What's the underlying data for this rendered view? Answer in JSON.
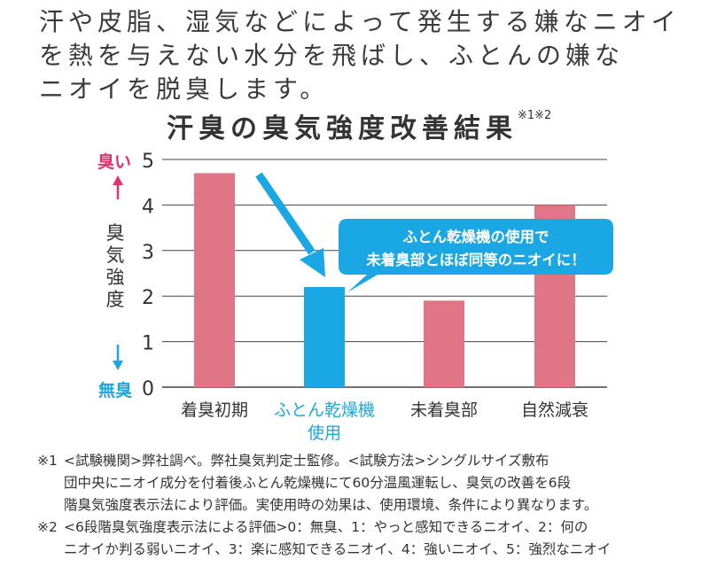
{
  "intro": {
    "lines": [
      "汗や皮脂、湿気などによって発生する嫌なニオイ",
      "を熱を与えない水分を飛ばし、ふとんの嫌な",
      "ニオイを脱臭します。"
    ]
  },
  "chart_data": {
    "type": "bar",
    "title": "汗臭の臭気強度改善結果",
    "title_note": "※1※2",
    "ylabel": "臭気強度",
    "ylim": [
      0,
      5
    ],
    "yticks": [
      "0",
      "1",
      "2",
      "3",
      "4",
      "5"
    ],
    "y_top_label": "臭い",
    "y_bottom_label": "無臭",
    "grid": true,
    "categories": [
      {
        "lines": [
          "着臭初期"
        ]
      },
      {
        "lines": [
          "ふとん乾燥機",
          "使用"
        ]
      },
      {
        "lines": [
          "未着臭部"
        ]
      },
      {
        "lines": [
          "自然減衰"
        ]
      }
    ],
    "values": [
      4.7,
      2.2,
      1.9,
      4.0
    ],
    "highlight_index": 1,
    "callout": [
      "ふとん乾燥機の使用で",
      "未着臭部とほぼ同等のニオイに！"
    ],
    "colors": {
      "bar": "#e07585",
      "highlight": "#1ba7e3",
      "pink_accent": "#e0356c",
      "axis": "#333333"
    }
  },
  "footnotes": [
    {
      "mark": "※1",
      "lines": [
        "<試験機関>弊社調べ。弊社臭気判定士監修。<試験方法>シングルサイズ敷布",
        "団中央にニオイ成分を付着後ふとん乾燥機にて60分温風運転し、臭気の改善を6段",
        "階臭気強度表示法により評価。実使用時の効果は、使用環境、条件により異なります。"
      ]
    },
    {
      "mark": "※2",
      "lines": [
        "<6段階臭気強度表示法による評価>0：無臭、1：やっと感知できるニオイ、2：何の",
        "ニオイか判る弱いニオイ、3：楽に感知できるニオイ、4：強いニオイ、5：強烈なニオイ"
      ]
    }
  ]
}
